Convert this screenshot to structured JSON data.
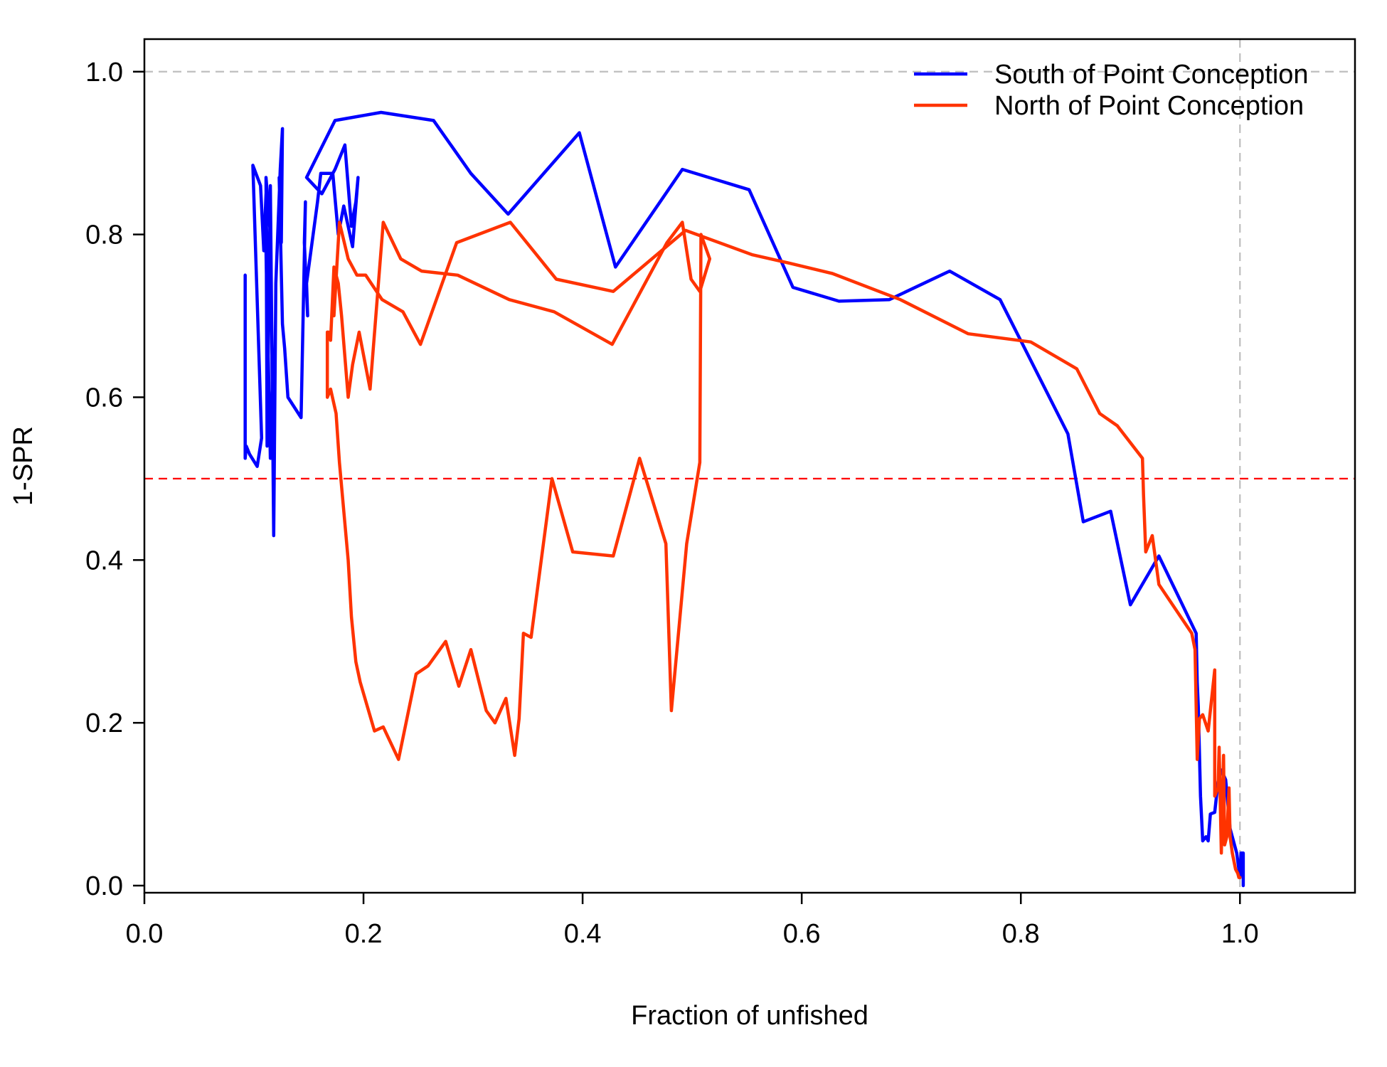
{
  "chart_data": {
    "type": "line",
    "xlabel": "Fraction of unfished",
    "ylabel": "1-SPR",
    "xlim": [
      0,
      1.105
    ],
    "ylim": [
      0,
      1.04
    ],
    "x_ticks": [
      0.0,
      0.2,
      0.4,
      0.6,
      0.8,
      1.0
    ],
    "x_tick_labels": [
      "0.0",
      "0.2",
      "0.4",
      "0.6",
      "0.8",
      "1.0"
    ],
    "y_ticks": [
      0.0,
      0.2,
      0.4,
      0.6,
      0.8,
      1.0
    ],
    "y_tick_labels": [
      "0.0",
      "0.2",
      "0.4",
      "0.6",
      "0.8",
      "1.0"
    ],
    "grid": false,
    "legend_position": "top-right",
    "reference_lines": [
      {
        "orientation": "horizontal",
        "value": 1.0,
        "color": "#bebebe",
        "style": "dashed"
      },
      {
        "orientation": "vertical",
        "value": 1.0,
        "color": "#bebebe",
        "style": "dashed"
      },
      {
        "orientation": "horizontal",
        "value": 0.5,
        "color": "#ff0000",
        "style": "dashed"
      }
    ],
    "series": [
      {
        "name": "South of Point Conception",
        "color": "#0000ff",
        "x": [
          0.092,
          0.092,
          0.093,
          0.096,
          0.103,
          0.107,
          0.099,
          0.106,
          0.109,
          0.111,
          0.113,
          0.113,
          0.112,
          0.111,
          0.115,
          0.117,
          0.115,
          0.111,
          0.112,
          0.115,
          0.118,
          0.12,
          0.124,
          0.126,
          0.125,
          0.123,
          0.126,
          0.128,
          0.131,
          0.143,
          0.147,
          0.146,
          0.149,
          0.148,
          0.158,
          0.161,
          0.166,
          0.172,
          0.177,
          0.182,
          0.186,
          0.19,
          0.195,
          0.193,
          0.189,
          0.183,
          0.174,
          0.162,
          0.148,
          0.174,
          0.216,
          0.264,
          0.298,
          0.332,
          0.397,
          0.43,
          0.491,
          0.552,
          0.592,
          0.634,
          0.68,
          0.735,
          0.781,
          0.843,
          0.857,
          0.882,
          0.9,
          0.926,
          0.96,
          0.961,
          0.962,
          0.964,
          0.966,
          0.969,
          0.971,
          0.973,
          0.977,
          0.98,
          0.983,
          0.987,
          0.991,
          0.997,
          1.0,
          1.001,
          1.003,
          1.003
        ],
        "y": [
          0.75,
          0.525,
          0.54,
          0.53,
          0.515,
          0.55,
          0.885,
          0.86,
          0.78,
          0.85,
          0.66,
          0.55,
          0.7,
          0.78,
          0.525,
          0.62,
          0.8,
          0.87,
          0.54,
          0.86,
          0.43,
          0.74,
          0.88,
          0.93,
          0.79,
          0.87,
          0.69,
          0.66,
          0.6,
          0.575,
          0.84,
          0.79,
          0.7,
          0.74,
          0.84,
          0.875,
          0.875,
          0.875,
          0.8,
          0.835,
          0.81,
          0.785,
          0.87,
          0.84,
          0.81,
          0.91,
          0.88,
          0.85,
          0.87,
          0.94,
          0.95,
          0.94,
          0.875,
          0.825,
          0.925,
          0.76,
          0.88,
          0.855,
          0.735,
          0.718,
          0.72,
          0.755,
          0.72,
          0.555,
          0.447,
          0.46,
          0.345,
          0.405,
          0.31,
          0.25,
          0.22,
          0.11,
          0.055,
          0.06,
          0.055,
          0.088,
          0.09,
          0.128,
          0.142,
          0.13,
          0.07,
          0.04,
          0.01,
          0.04,
          0.04,
          0.0
        ]
      },
      {
        "name": "North of Point Conception",
        "color": "#ff3300",
        "x": [
          0.167,
          0.167,
          0.17,
          0.175,
          0.178,
          0.186,
          0.189,
          0.193,
          0.197,
          0.21,
          0.218,
          0.232,
          0.248,
          0.259,
          0.275,
          0.287,
          0.298,
          0.312,
          0.32,
          0.33,
          0.338,
          0.342,
          0.346,
          0.353,
          0.372,
          0.391,
          0.428,
          0.452,
          0.476,
          0.481,
          0.495,
          0.507,
          0.508,
          0.516,
          0.507,
          0.499,
          0.491,
          0.477,
          0.427,
          0.374,
          0.333,
          0.286,
          0.253,
          0.234,
          0.218,
          0.206,
          0.196,
          0.19,
          0.186,
          0.18,
          0.177,
          0.173,
          0.17,
          0.167,
          0.168
        ],
        "y": [
          0.68,
          0.6,
          0.61,
          0.58,
          0.52,
          0.4,
          0.33,
          0.275,
          0.25,
          0.19,
          0.195,
          0.155,
          0.26,
          0.27,
          0.3,
          0.245,
          0.29,
          0.215,
          0.2,
          0.23,
          0.16,
          0.205,
          0.31,
          0.305,
          0.5,
          0.41,
          0.405,
          0.525,
          0.42,
          0.215,
          0.42,
          0.52,
          0.8,
          0.77,
          0.73,
          0.745,
          0.815,
          0.79,
          0.665,
          0.705,
          0.72,
          0.75,
          0.755,
          0.77,
          0.815,
          0.61,
          0.68,
          0.64,
          0.6,
          0.7,
          0.74,
          0.76,
          0.67,
          0.68,
          0.68
        ]
      },
      {
        "name": "",
        "color": "#ff3300",
        "x": [
          0.173,
          0.178,
          0.186,
          0.194,
          0.202,
          0.217,
          0.236,
          0.252,
          0.285,
          0.334,
          0.376,
          0.428,
          0.494,
          0.555,
          0.588,
          0.628,
          0.69,
          0.752,
          0.809,
          0.851,
          0.872,
          0.888,
          0.911,
          0.912,
          0.914,
          0.92,
          0.926,
          0.956,
          0.959,
          0.961,
          0.963,
          0.966,
          0.971,
          0.977,
          0.977,
          0.98,
          0.981,
          0.983,
          0.985,
          0.986,
          0.988,
          0.99,
          0.991,
          0.993,
          0.996,
          0.998,
          0.999,
          1.0
        ],
        "y": [
          0.7,
          0.815,
          0.77,
          0.75,
          0.75,
          0.72,
          0.705,
          0.665,
          0.79,
          0.815,
          0.745,
          0.73,
          0.805,
          0.775,
          0.765,
          0.752,
          0.72,
          0.678,
          0.668,
          0.635,
          0.58,
          0.565,
          0.525,
          0.48,
          0.41,
          0.43,
          0.37,
          0.31,
          0.29,
          0.155,
          0.205,
          0.21,
          0.19,
          0.265,
          0.11,
          0.12,
          0.17,
          0.04,
          0.16,
          0.05,
          0.06,
          0.12,
          0.06,
          0.04,
          0.02,
          0.015,
          0.01,
          0.01
        ]
      }
    ]
  }
}
